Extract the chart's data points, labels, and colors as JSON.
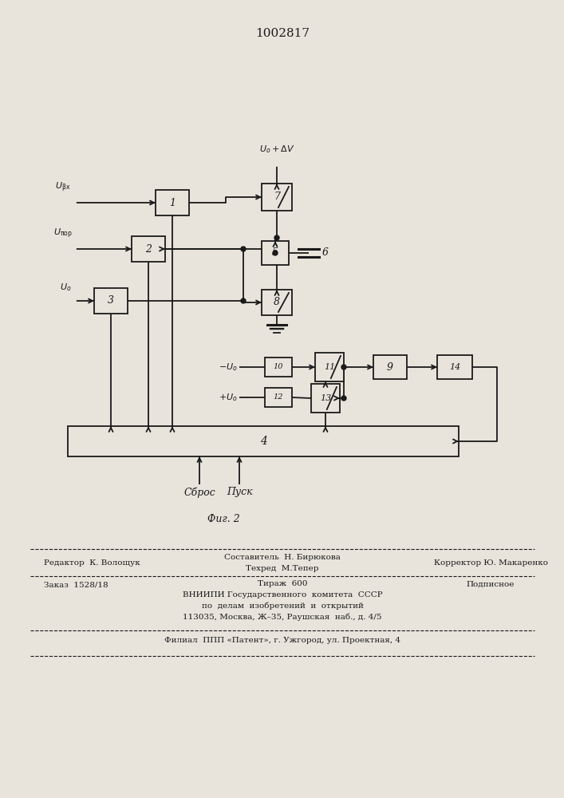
{
  "title": "1002817",
  "fig_label": "Фиг. 2",
  "bg": "#e8e4dc",
  "lc": "#1a1a1a",
  "bc": "#e8e4dc",
  "labels": {
    "u_vx": "$U_{\\rm \\beta x}$",
    "u_por": "$U_{\\rm \\pi op}$",
    "u_o": "$U_o$",
    "u_delta": "$U_o + \\Delta V$",
    "minus_uo": "$-U_o$",
    "plus_uo": "$+U_o$",
    "sbrос": "Сброс",
    "pusk": "Пуск"
  },
  "footer": {
    "r1_left": "Редактор  К. Волощук",
    "r1_mid1": "Составитель  Н. Бирюкова",
    "r1_mid2": "Техред  М.Тепер",
    "r1_right": "Корректор Ю. Макаренко",
    "r2_left": "Заказ  1528/18",
    "r2_mid1": "Тираж  600",
    "r2_mid2": "ВНИИПИ Государственного  комитета  СССР",
    "r2_mid3": "по  делам  изобретений  и  открытий",
    "r2_mid4": "113035, Москва, Ж–35, Раушская  наб., д. 4/5",
    "r2_right": "Подписное",
    "last": "Филиал  ППП «Патент», г. Ужгород, ул. Проектная, 4"
  }
}
